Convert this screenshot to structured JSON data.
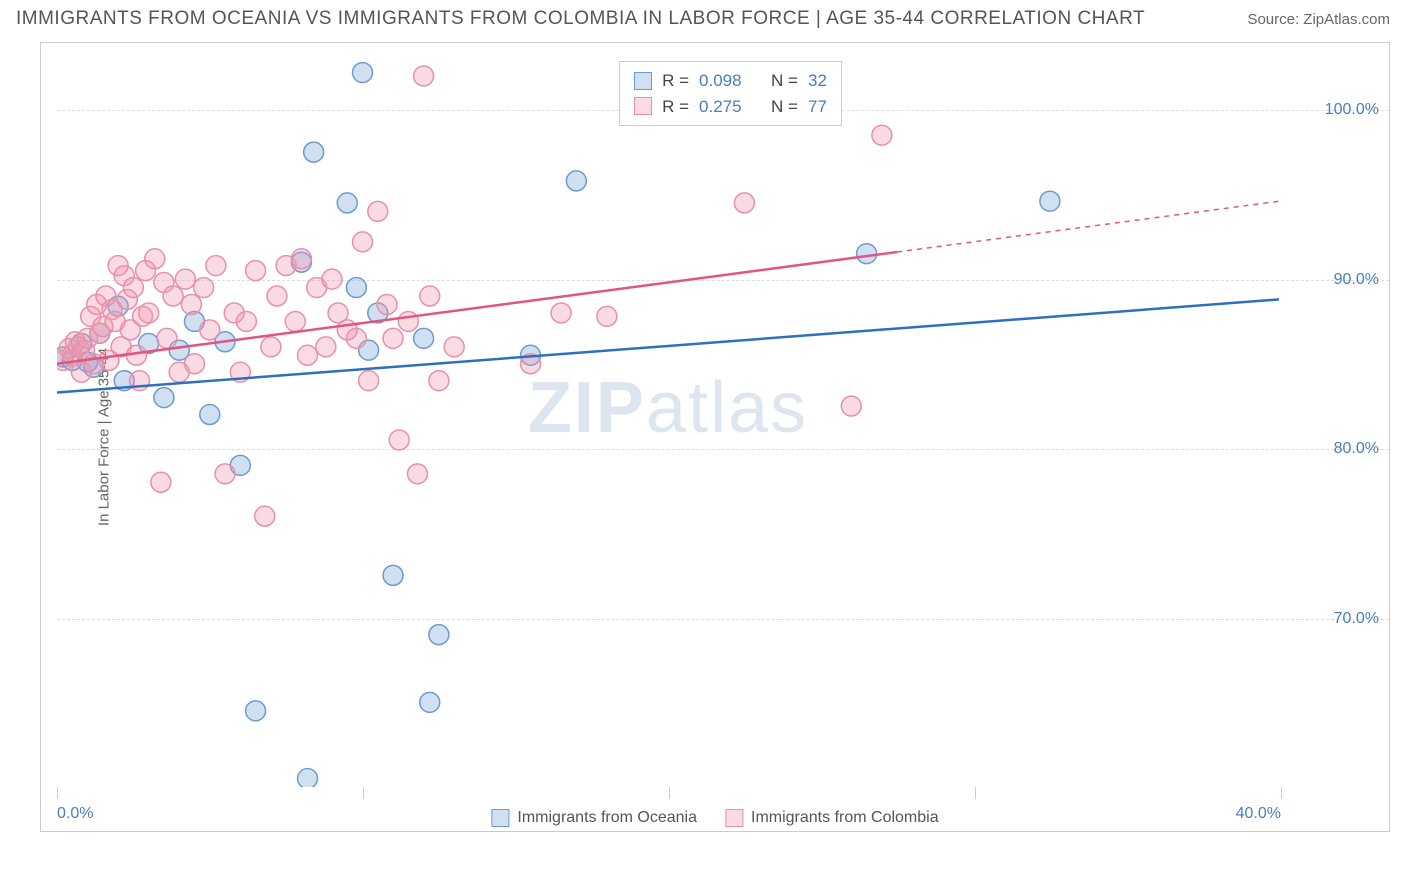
{
  "header": {
    "title": "IMMIGRANTS FROM OCEANIA VS IMMIGRANTS FROM COLOMBIA IN LABOR FORCE | AGE 35-44 CORRELATION CHART",
    "source": "Source: ZipAtlas.com"
  },
  "watermark": {
    "bold": "ZIP",
    "light": "atlas"
  },
  "chart": {
    "type": "scatter",
    "ylabel": "In Labor Force | Age 35-44",
    "x_domain": [
      0,
      40
    ],
    "y_domain": [
      60,
      103
    ],
    "y_ticks": [
      70,
      80,
      90,
      100
    ],
    "y_tick_labels": [
      "70.0%",
      "80.0%",
      "90.0%",
      "100.0%"
    ],
    "x_ticks": [
      0,
      10,
      20,
      30,
      40
    ],
    "x_tick_labels": [
      "0.0%",
      "",
      "",
      "",
      "40.0%"
    ],
    "marker_radius": 10,
    "marker_stroke_width": 1.5,
    "background_color": "#ffffff",
    "grid_color": "#dddddd",
    "series": [
      {
        "key": "oceania",
        "label": "Immigrants from Oceania",
        "color_fill": "rgba(120,165,216,0.35)",
        "color_stroke": "#6b9bd1",
        "R": "0.098",
        "N": "32",
        "line": {
          "x1": 0,
          "y1": 83.3,
          "x2": 40,
          "y2": 88.8,
          "solid_until": 40,
          "stroke": "#2f6fc2",
          "width": 2.5
        },
        "points": [
          [
            0.2,
            85.4
          ],
          [
            0.5,
            85.2
          ],
          [
            0.8,
            86.2
          ],
          [
            1.0,
            85.1
          ],
          [
            1.2,
            84.8
          ],
          [
            1.4,
            86.8
          ],
          [
            2.0,
            88.4
          ],
          [
            2.2,
            84.0
          ],
          [
            3.0,
            86.2
          ],
          [
            3.5,
            83.0
          ],
          [
            4.0,
            85.8
          ],
          [
            4.5,
            87.5
          ],
          [
            5.0,
            82.0
          ],
          [
            5.5,
            86.3
          ],
          [
            6.0,
            79.0
          ],
          [
            6.5,
            64.5
          ],
          [
            8.0,
            91.0
          ],
          [
            8.2,
            60.5
          ],
          [
            8.4,
            97.5
          ],
          [
            9.5,
            94.5
          ],
          [
            9.8,
            89.5
          ],
          [
            10.0,
            102.2
          ],
          [
            10.2,
            85.8
          ],
          [
            10.5,
            88.0
          ],
          [
            11.0,
            72.5
          ],
          [
            12.0,
            86.5
          ],
          [
            12.2,
            65.0
          ],
          [
            12.5,
            69.0
          ],
          [
            15.5,
            85.5
          ],
          [
            17.0,
            95.8
          ],
          [
            26.5,
            91.5
          ],
          [
            32.5,
            94.6
          ]
        ]
      },
      {
        "key": "colombia",
        "label": "Immigrants from Colombia",
        "color_fill": "rgba(240,150,175,0.35)",
        "color_stroke": "#e890aa",
        "R": "0.275",
        "N": "77",
        "line": {
          "x1": 0,
          "y1": 85.0,
          "x2": 40,
          "y2": 94.6,
          "solid_until": 27.5,
          "stroke": "#e2557e",
          "width": 2.5
        },
        "points": [
          [
            0.2,
            85.2
          ],
          [
            0.4,
            85.9
          ],
          [
            0.5,
            85.5
          ],
          [
            0.6,
            86.3
          ],
          [
            0.7,
            86.0
          ],
          [
            0.8,
            84.5
          ],
          [
            0.9,
            85.8
          ],
          [
            1.0,
            86.5
          ],
          [
            1.1,
            87.8
          ],
          [
            1.2,
            85.0
          ],
          [
            1.3,
            88.5
          ],
          [
            1.4,
            86.8
          ],
          [
            1.5,
            87.2
          ],
          [
            1.6,
            89.0
          ],
          [
            1.7,
            85.2
          ],
          [
            1.8,
            88.2
          ],
          [
            1.9,
            87.5
          ],
          [
            2.0,
            90.8
          ],
          [
            2.1,
            86.0
          ],
          [
            2.2,
            90.2
          ],
          [
            2.3,
            88.8
          ],
          [
            2.4,
            87.0
          ],
          [
            2.5,
            89.5
          ],
          [
            2.6,
            85.5
          ],
          [
            2.7,
            84.0
          ],
          [
            2.8,
            87.8
          ],
          [
            2.9,
            90.5
          ],
          [
            3.0,
            88.0
          ],
          [
            3.2,
            91.2
          ],
          [
            3.4,
            78.0
          ],
          [
            3.5,
            89.8
          ],
          [
            3.6,
            86.5
          ],
          [
            3.8,
            89.0
          ],
          [
            4.0,
            84.5
          ],
          [
            4.2,
            90.0
          ],
          [
            4.4,
            88.5
          ],
          [
            4.5,
            85.0
          ],
          [
            4.8,
            89.5
          ],
          [
            5.0,
            87.0
          ],
          [
            5.2,
            90.8
          ],
          [
            5.5,
            78.5
          ],
          [
            5.8,
            88.0
          ],
          [
            6.0,
            84.5
          ],
          [
            6.2,
            87.5
          ],
          [
            6.5,
            90.5
          ],
          [
            6.8,
            76.0
          ],
          [
            7.0,
            86.0
          ],
          [
            7.2,
            89.0
          ],
          [
            7.5,
            90.8
          ],
          [
            7.8,
            87.5
          ],
          [
            8.0,
            91.2
          ],
          [
            8.2,
            85.5
          ],
          [
            8.5,
            89.5
          ],
          [
            8.8,
            86.0
          ],
          [
            9.0,
            90.0
          ],
          [
            9.2,
            88.0
          ],
          [
            9.5,
            87.0
          ],
          [
            9.8,
            86.5
          ],
          [
            10.0,
            92.2
          ],
          [
            10.2,
            84.0
          ],
          [
            10.5,
            94.0
          ],
          [
            10.8,
            88.5
          ],
          [
            11.0,
            86.5
          ],
          [
            11.2,
            80.5
          ],
          [
            11.5,
            87.5
          ],
          [
            11.8,
            78.5
          ],
          [
            12.0,
            102.0
          ],
          [
            12.2,
            89.0
          ],
          [
            12.5,
            84.0
          ],
          [
            13.0,
            86.0
          ],
          [
            15.5,
            85.0
          ],
          [
            16.5,
            88.0
          ],
          [
            21.5,
            102.2
          ],
          [
            22.5,
            94.5
          ],
          [
            26.0,
            82.5
          ],
          [
            27.0,
            98.5
          ],
          [
            18.0,
            87.8
          ]
        ]
      }
    ]
  }
}
